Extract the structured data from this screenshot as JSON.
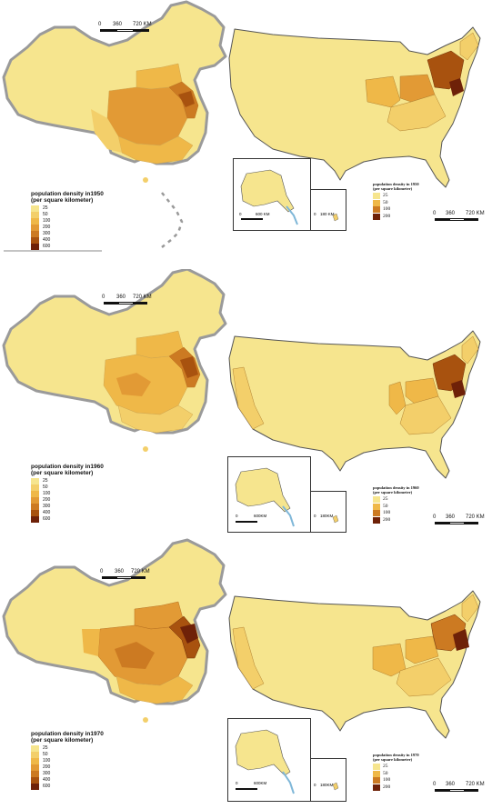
{
  "colors": {
    "c1": "#f6e58e",
    "c2": "#f3cf6a",
    "c3": "#efb848",
    "c4": "#e29a35",
    "c5": "#cc7a22",
    "c6": "#a8520f",
    "c7": "#6e2108",
    "border_china": "#9a9a9a",
    "border_us": "#555555",
    "water": "#7fb7d8"
  },
  "panels": [
    {
      "china": {
        "scale": {
          "zero": "0",
          "mid": "360",
          "end": "720 KM"
        },
        "legend": {
          "title": "population density in1950",
          "subtitle": "(per square kilometer)",
          "items": [
            "25",
            "50",
            "100",
            "200",
            "300",
            "400",
            "600"
          ]
        }
      },
      "us": {
        "legend": {
          "title": "population density in 1950",
          "subtitle": "(per square kilometer)",
          "items": [
            "25",
            "50",
            "100",
            "200"
          ]
        },
        "scale": {
          "zero": "0",
          "mid": "360",
          "end": "720 KM"
        },
        "alaska_scale": {
          "zero": "0",
          "end": "600 KM"
        },
        "hawaii_scale": {
          "zero": "0",
          "end": "180 KM"
        }
      }
    },
    {
      "china": {
        "scale": {
          "zero": "0",
          "mid": "360",
          "end": "720 KM"
        },
        "legend": {
          "title": "population density in1960",
          "subtitle": "(per square kilometer)",
          "items": [
            "25",
            "50",
            "100",
            "200",
            "300",
            "400",
            "600"
          ]
        }
      },
      "us": {
        "legend": {
          "title": "population density in 1960",
          "subtitle": "(per square kilometer)",
          "items": [
            "25",
            "50",
            "100",
            "200"
          ]
        },
        "scale": {
          "zero": "0",
          "mid": "360",
          "end": "720 KM"
        },
        "alaska_scale": {
          "zero": "0",
          "end": "600KM"
        },
        "hawaii_scale": {
          "zero": "0",
          "end": "180KM"
        }
      }
    },
    {
      "china": {
        "scale": {
          "zero": "0",
          "mid": "360",
          "end": "720 KM"
        },
        "legend": {
          "title": "population density in1970",
          "subtitle": "(per square kilometer)",
          "items": [
            "25",
            "50",
            "100",
            "200",
            "300",
            "400",
            "600"
          ]
        }
      },
      "us": {
        "legend": {
          "title": "population density in 1970",
          "subtitle": "(per square kilometer)",
          "items": [
            "25",
            "50",
            "100",
            "200"
          ]
        },
        "scale": {
          "zero": "0",
          "mid": "360",
          "end": "720 KM"
        },
        "alaska_scale": {
          "zero": "0",
          "end": "600KM"
        },
        "hawaii_scale": {
          "zero": "0",
          "end": "180KM"
        }
      }
    }
  ]
}
